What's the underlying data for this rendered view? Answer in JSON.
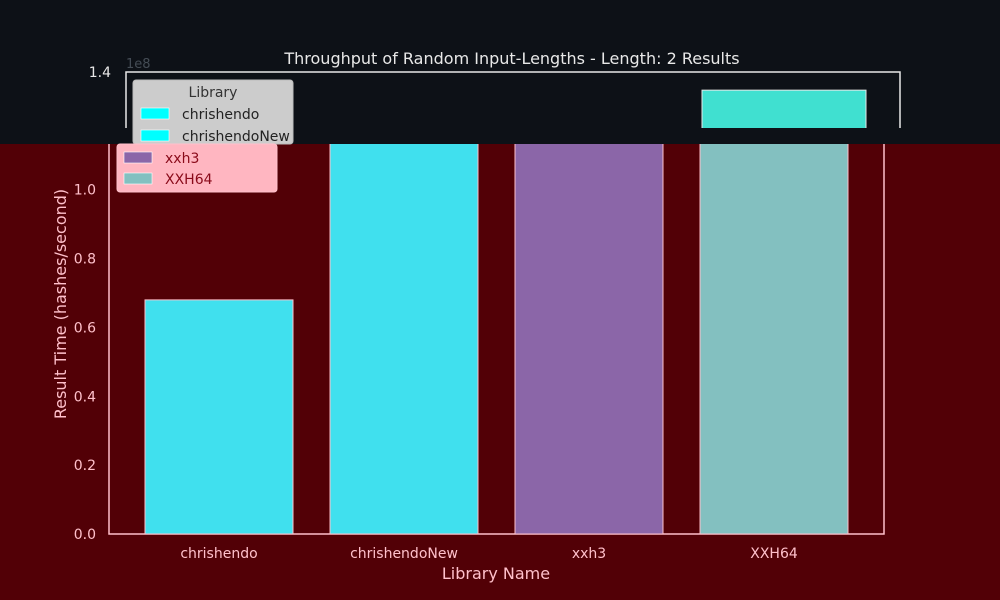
{
  "chart_data": {
    "type": "bar",
    "title": "Throughput of Random Input-Lengths - Length: 2 Results",
    "xlabel": "Library Name",
    "ylabel": "Result Time (hashes/second)",
    "offset_text": "1e8",
    "categories": [
      "chrishendo",
      "chrishendoNew",
      "xxh3",
      "XXH64"
    ],
    "values": [
      68000000,
      121000000,
      117000000,
      134500000
    ],
    "bar_colors": [
      "#40e0ee",
      "#40e0ee",
      "#8b66a8",
      "#83c0c0"
    ],
    "bar_colors_top": [
      "#40e0ee",
      "#40e0ee",
      "#8b66a8",
      "#40e0d0"
    ],
    "ylim": [
      0,
      140000000
    ],
    "yticks": [
      0,
      20000000,
      40000000,
      60000000,
      80000000,
      100000000,
      120000000,
      140000000
    ],
    "ytick_labels": [
      "0.0",
      "0.2",
      "0.4",
      "0.6",
      "0.8",
      "1.0",
      "1.2",
      "1.4"
    ],
    "grid": false,
    "legend": {
      "title": "Library",
      "placement": "top-left",
      "entries": [
        {
          "label": "chrishendo",
          "color": "#00ffff"
        },
        {
          "label": "chrishendoNew",
          "color": "#00ffff"
        },
        {
          "label": "xxh3",
          "color": "#8b66a8"
        },
        {
          "label": "XXH64",
          "color": "#83c0c0"
        }
      ]
    }
  },
  "colors": {
    "background_top": "#0d1117",
    "background_bottom": "#520006",
    "text_top": "#e8e8e8",
    "text_bottom": "#ffc0cb",
    "axes_frame_top": "#e8e8e8",
    "axes_frame_bottom": "#ffc0cb"
  }
}
